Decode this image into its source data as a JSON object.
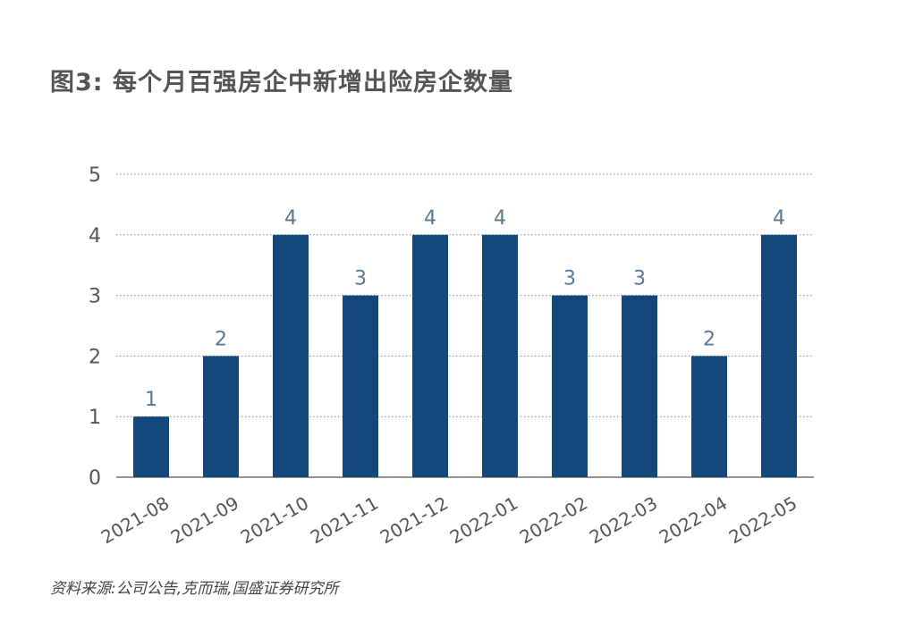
{
  "title": "图3: 每个月百强房企中新增出险房企数量",
  "source": "资料来源:公司公告,克而瑞,国盛证券研究所",
  "colors": {
    "bar": "#14477a",
    "data_label": "#5a7894",
    "tick_label": "#555555",
    "grid": "#8a8a8a",
    "axis": "#555555"
  },
  "chart_data": {
    "type": "bar",
    "categories": [
      "2021-08",
      "2021-09",
      "2021-10",
      "2021-11",
      "2021-12",
      "2022-01",
      "2022-02",
      "2022-03",
      "2022-04",
      "2022-05"
    ],
    "values": [
      1,
      2,
      4,
      3,
      4,
      4,
      3,
      3,
      2,
      4
    ],
    "ylim": [
      0,
      5
    ],
    "yticks": [
      0,
      1,
      2,
      3,
      4,
      5
    ],
    "data_labels": true,
    "grid": "horizontal-dotted",
    "legend": "none"
  }
}
